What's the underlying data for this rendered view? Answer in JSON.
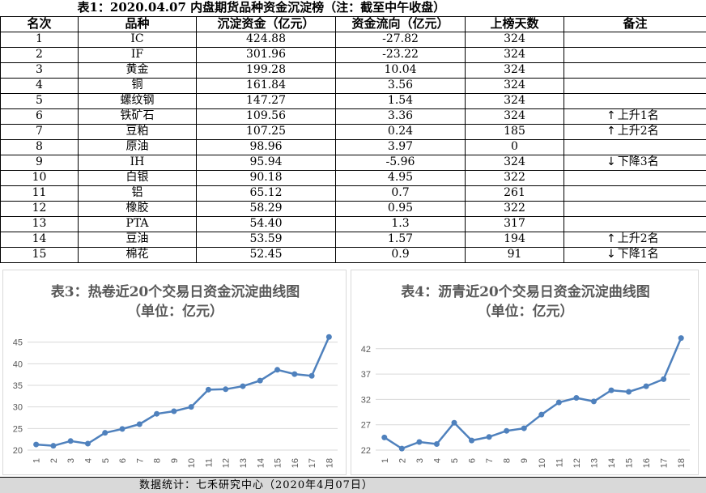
{
  "table": {
    "title": "表1：2020.04.07 内盘期货品种资金沉淀榜（注：截至中午收盘）",
    "headers": [
      "名次",
      "品种",
      "沉淀资金（亿元）",
      "资金流向（亿元）",
      "上榜天数",
      "备注"
    ],
    "rows": [
      {
        "rank": "1",
        "name": "IC",
        "funds": "424.88",
        "flow": "-27.82",
        "days": "324",
        "note": "",
        "dir": ""
      },
      {
        "rank": "2",
        "name": "IF",
        "funds": "301.96",
        "flow": "-23.22",
        "days": "324",
        "note": "",
        "dir": ""
      },
      {
        "rank": "3",
        "name": "黄金",
        "funds": "199.28",
        "flow": "10.04",
        "days": "324",
        "note": "",
        "dir": ""
      },
      {
        "rank": "4",
        "name": "铜",
        "funds": "161.84",
        "flow": "3.56",
        "days": "324",
        "note": "",
        "dir": ""
      },
      {
        "rank": "5",
        "name": "螺纹钢",
        "funds": "147.27",
        "flow": "1.54",
        "days": "324",
        "note": "",
        "dir": ""
      },
      {
        "rank": "6",
        "name": "铁矿石",
        "funds": "109.56",
        "flow": "3.36",
        "days": "324",
        "note": "上升1名",
        "dir": "up"
      },
      {
        "rank": "7",
        "name": "豆粕",
        "funds": "107.25",
        "flow": "0.24",
        "days": "185",
        "note": "上升2名",
        "dir": "up"
      },
      {
        "rank": "8",
        "name": "原油",
        "funds": "98.96",
        "flow": "3.97",
        "days": "0",
        "note": "",
        "dir": ""
      },
      {
        "rank": "9",
        "name": "IH",
        "funds": "95.94",
        "flow": "-5.96",
        "days": "324",
        "note": "下降3名",
        "dir": "down"
      },
      {
        "rank": "10",
        "name": "白银",
        "funds": "90.18",
        "flow": "4.95",
        "days": "322",
        "note": "",
        "dir": ""
      },
      {
        "rank": "11",
        "name": "铝",
        "funds": "65.12",
        "flow": "0.7",
        "days": "261",
        "note": "",
        "dir": ""
      },
      {
        "rank": "12",
        "name": "橡胶",
        "funds": "58.29",
        "flow": "0.95",
        "days": "322",
        "note": "",
        "dir": ""
      },
      {
        "rank": "13",
        "name": "PTA",
        "funds": "54.40",
        "flow": "1.3",
        "days": "317",
        "note": "",
        "dir": ""
      },
      {
        "rank": "14",
        "name": "豆油",
        "funds": "53.59",
        "flow": "1.57",
        "days": "194",
        "note": "上升2名",
        "dir": "up"
      },
      {
        "rank": "15",
        "name": "棉花",
        "funds": "52.45",
        "flow": "0.9",
        "days": "91",
        "note": "下降1名",
        "dir": "down"
      }
    ]
  },
  "chart_data": [
    {
      "type": "line",
      "title": "表3：热卷近20个交易日资金沉淀曲线图",
      "subtitle": "（单位：亿元）",
      "x": [
        "1",
        "2",
        "3",
        "4",
        "5",
        "6",
        "7",
        "8",
        "9",
        "10",
        "11",
        "12",
        "13",
        "14",
        "15",
        "16",
        "17",
        "18"
      ],
      "series": [
        {
          "values": [
            21.3,
            21.0,
            22.1,
            21.5,
            24.0,
            24.9,
            26.0,
            28.4,
            29.0,
            30.0,
            34.0,
            34.1,
            34.8,
            36.1,
            38.6,
            37.6,
            37.2,
            46.2
          ]
        }
      ],
      "ylim": [
        20,
        47
      ],
      "yticks": [
        20,
        25,
        30,
        35,
        40,
        45
      ],
      "grid": true,
      "color": "#4f81bd"
    },
    {
      "type": "line",
      "title": "表4：沥青近20个交易日资金沉淀曲线图",
      "subtitle": "（单位：亿元）",
      "x": [
        "1",
        "2",
        "3",
        "4",
        "5",
        "6",
        "7",
        "8",
        "9",
        "10",
        "11",
        "12",
        "13",
        "14",
        "15",
        "16",
        "17",
        "18"
      ],
      "series": [
        {
          "values": [
            24.5,
            22.3,
            23.6,
            23.2,
            27.4,
            23.9,
            24.6,
            25.8,
            26.3,
            29.0,
            31.4,
            32.3,
            31.6,
            33.8,
            33.5,
            34.6,
            36.0,
            44.1
          ]
        }
      ],
      "ylim": [
        22,
        45
      ],
      "yticks": [
        22,
        27,
        32,
        37,
        42
      ],
      "grid": true,
      "color": "#4f81bd"
    }
  ],
  "footer": {
    "text": "数据统计：七禾研究中心（2020年4月07日）"
  }
}
